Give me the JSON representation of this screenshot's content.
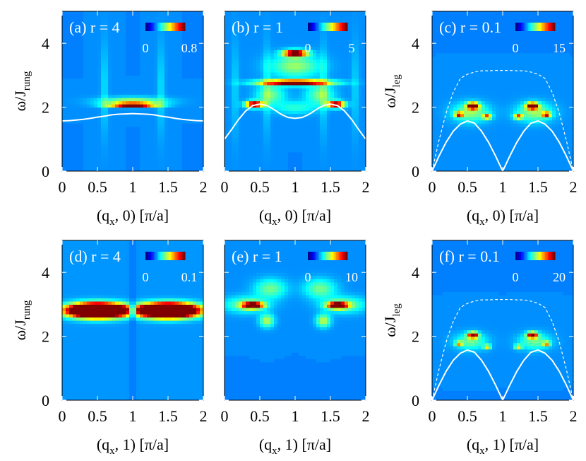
{
  "chart_data": [
    {
      "type": "heatmap",
      "panel_label": "(a) r = 4",
      "colorbar_labels": [
        "0",
        "0.8"
      ],
      "colorbar_range": [
        0,
        0.8
      ],
      "xlabel": "(q",
      "xlabel_sub": "x",
      "xlabel_rest": ", 0) [π/a]",
      "ylabel": "ω/J",
      "ylabel_sub": "rung",
      "xticks": [
        "0",
        "0.5",
        "1",
        "1.5",
        "2"
      ],
      "yticks": [
        "0",
        "2",
        "4"
      ],
      "xlim": [
        0,
        2
      ],
      "ylim": [
        0,
        5
      ],
      "colormap": "jet",
      "blobs": [
        {
          "x": 1.0,
          "y": 2.08,
          "sx": 0.32,
          "sy": 0.06,
          "a": 1.3
        },
        {
          "x": 1.0,
          "y": 2.2,
          "sx": 0.45,
          "sy": 0.12,
          "a": 0.4
        }
      ],
      "streaks": [
        {
          "x": 0.6,
          "a": 0.12
        },
        {
          "x": 1.4,
          "a": 0.12
        }
      ],
      "background": 0.02,
      "curves": [
        {
          "style": "solid",
          "points": [
            [
              0,
              1.57
            ],
            [
              0.1,
              1.58
            ],
            [
              0.2,
              1.6
            ],
            [
              0.3,
              1.62
            ],
            [
              0.4,
              1.65
            ],
            [
              0.5,
              1.69
            ],
            [
              0.6,
              1.72
            ],
            [
              0.7,
              1.76
            ],
            [
              0.8,
              1.78
            ],
            [
              0.9,
              1.79
            ],
            [
              1.0,
              1.8
            ],
            [
              1.1,
              1.79
            ],
            [
              1.2,
              1.78
            ],
            [
              1.3,
              1.76
            ],
            [
              1.4,
              1.72
            ],
            [
              1.5,
              1.69
            ],
            [
              1.6,
              1.65
            ],
            [
              1.7,
              1.62
            ],
            [
              1.8,
              1.6
            ],
            [
              1.9,
              1.58
            ],
            [
              2.0,
              1.57
            ]
          ]
        }
      ]
    },
    {
      "type": "heatmap",
      "panel_label": "(b) r = 1",
      "colorbar_labels": [
        "0",
        "5"
      ],
      "colorbar_range": [
        0,
        5
      ],
      "xlabel": "(q",
      "xlabel_sub": "x",
      "xlabel_rest": ", 0) [π/a]",
      "ylabel": "",
      "ylabel_sub": "",
      "xticks": [
        "0",
        "0.5",
        "1",
        "1.5",
        "2"
      ],
      "yticks": [],
      "xlim": [
        0,
        2
      ],
      "ylim": [
        0,
        5
      ],
      "colormap": "jet",
      "blobs": [
        {
          "x": 1.0,
          "y": 3.7,
          "sx": 0.16,
          "sy": 0.1,
          "a": 1.2
        },
        {
          "x": 1.0,
          "y": 2.78,
          "sx": 0.48,
          "sy": 0.08,
          "a": 1.2
        },
        {
          "x": 0.42,
          "y": 2.1,
          "sx": 0.12,
          "sy": 0.1,
          "a": 1.1
        },
        {
          "x": 1.58,
          "y": 2.1,
          "sx": 0.12,
          "sy": 0.1,
          "a": 1.1
        },
        {
          "x": 1.0,
          "y": 3.3,
          "sx": 0.35,
          "sy": 0.35,
          "a": 0.35
        },
        {
          "x": 0.65,
          "y": 2.4,
          "sx": 0.2,
          "sy": 0.3,
          "a": 0.3
        },
        {
          "x": 1.35,
          "y": 2.4,
          "sx": 0.2,
          "sy": 0.3,
          "a": 0.3
        },
        {
          "x": 1.0,
          "y": 2.0,
          "sx": 0.3,
          "sy": 0.2,
          "a": 0.2
        }
      ],
      "streaks": [
        {
          "x": 0.15,
          "a": 0.1
        },
        {
          "x": 0.6,
          "a": 0.12
        },
        {
          "x": 1.4,
          "a": 0.12
        },
        {
          "x": 1.85,
          "a": 0.1
        }
      ],
      "background": 0.02,
      "curves": [
        {
          "style": "solid",
          "points": [
            [
              0,
              1.0
            ],
            [
              0.1,
              1.3
            ],
            [
              0.2,
              1.62
            ],
            [
              0.3,
              1.88
            ],
            [
              0.4,
              2.05
            ],
            [
              0.5,
              2.1
            ],
            [
              0.6,
              2.05
            ],
            [
              0.7,
              1.93
            ],
            [
              0.8,
              1.78
            ],
            [
              0.9,
              1.68
            ],
            [
              1.0,
              1.65
            ],
            [
              1.1,
              1.68
            ],
            [
              1.2,
              1.78
            ],
            [
              1.3,
              1.93
            ],
            [
              1.4,
              2.05
            ],
            [
              1.5,
              2.1
            ],
            [
              1.6,
              2.05
            ],
            [
              1.7,
              1.88
            ],
            [
              1.8,
              1.62
            ],
            [
              1.9,
              1.3
            ],
            [
              2.0,
              1.0
            ]
          ]
        }
      ]
    },
    {
      "type": "heatmap",
      "panel_label": "(c) r = 0.1",
      "colorbar_labels": [
        "0",
        "15"
      ],
      "colorbar_range": [
        0,
        15
      ],
      "xlabel": "(q",
      "xlabel_sub": "x",
      "xlabel_rest": ", 0) [π/a]",
      "ylabel": "ω/J",
      "ylabel_sub": "leg",
      "xticks": [
        "0",
        "0.5",
        "1",
        "1.5",
        "2"
      ],
      "yticks": [
        "0",
        "2",
        "4"
      ],
      "xlim": [
        0,
        2
      ],
      "ylim": [
        0,
        5
      ],
      "colormap": "jet",
      "blobs": [
        {
          "x": 0.58,
          "y": 2.05,
          "sx": 0.08,
          "sy": 0.1,
          "a": 1.2
        },
        {
          "x": 1.42,
          "y": 2.05,
          "sx": 0.08,
          "sy": 0.1,
          "a": 1.2
        },
        {
          "x": 0.38,
          "y": 1.78,
          "sx": 0.06,
          "sy": 0.08,
          "a": 0.8
        },
        {
          "x": 0.78,
          "y": 1.72,
          "sx": 0.06,
          "sy": 0.08,
          "a": 0.7
        },
        {
          "x": 1.22,
          "y": 1.72,
          "sx": 0.06,
          "sy": 0.08,
          "a": 0.7
        },
        {
          "x": 1.62,
          "y": 1.78,
          "sx": 0.06,
          "sy": 0.08,
          "a": 0.8
        },
        {
          "x": 0.55,
          "y": 1.85,
          "sx": 0.25,
          "sy": 0.3,
          "a": 0.35
        },
        {
          "x": 1.45,
          "y": 1.85,
          "sx": 0.25,
          "sy": 0.3,
          "a": 0.35
        }
      ],
      "streaks": [],
      "background": 0.02,
      "curves": [
        {
          "style": "solid",
          "points": [
            [
              0,
              0
            ],
            [
              0.1,
              0.48
            ],
            [
              0.2,
              0.91
            ],
            [
              0.3,
              1.25
            ],
            [
              0.4,
              1.47
            ],
            [
              0.5,
              1.57
            ],
            [
              0.6,
              1.5
            ],
            [
              0.7,
              1.25
            ],
            [
              0.8,
              0.9
            ],
            [
              0.9,
              0.47
            ],
            [
              1.0,
              0.0
            ],
            [
              1.1,
              0.47
            ],
            [
              1.2,
              0.9
            ],
            [
              1.3,
              1.25
            ],
            [
              1.4,
              1.5
            ],
            [
              1.5,
              1.57
            ],
            [
              1.6,
              1.47
            ],
            [
              1.7,
              1.25
            ],
            [
              1.8,
              0.91
            ],
            [
              1.9,
              0.48
            ],
            [
              2.0,
              0
            ]
          ]
        },
        {
          "style": "dashed",
          "points": [
            [
              0,
              0
            ],
            [
              0.1,
              0.98
            ],
            [
              0.2,
              1.83
            ],
            [
              0.3,
              2.47
            ],
            [
              0.4,
              2.9
            ],
            [
              0.5,
              3.03
            ],
            [
              0.6,
              3.1
            ],
            [
              0.7,
              3.14
            ],
            [
              0.8,
              3.14
            ],
            [
              0.9,
              3.15
            ],
            [
              1.0,
              3.15
            ],
            [
              1.1,
              3.15
            ],
            [
              1.2,
              3.14
            ],
            [
              1.3,
              3.14
            ],
            [
              1.4,
              3.1
            ],
            [
              1.5,
              3.03
            ],
            [
              1.6,
              2.9
            ],
            [
              1.7,
              2.47
            ],
            [
              1.8,
              1.83
            ],
            [
              1.9,
              0.98
            ],
            [
              2.0,
              0
            ]
          ]
        }
      ]
    },
    {
      "type": "heatmap",
      "panel_label": "(d) r = 4",
      "colorbar_labels": [
        "0",
        "0.1"
      ],
      "colorbar_range": [
        0,
        0.1
      ],
      "xlabel": "(q",
      "xlabel_sub": "x",
      "xlabel_rest": ", 1) [π/a]",
      "ylabel": "ω/J",
      "ylabel_sub": "rung",
      "xticks": [
        "0",
        "0.5",
        "1",
        "1.5",
        "2"
      ],
      "yticks": [
        "0",
        "2",
        "4"
      ],
      "xlim": [
        0,
        2
      ],
      "ylim": [
        0,
        5
      ],
      "colormap": "jet",
      "blobs": [
        {
          "x": 0.5,
          "y": 2.82,
          "sx": 0.38,
          "sy": 0.2,
          "a": 3.0
        },
        {
          "x": 1.5,
          "y": 2.82,
          "sx": 0.38,
          "sy": 0.2,
          "a": 3.0
        }
      ],
      "streaks": [],
      "background": 0.03,
      "gap_at": 1.0,
      "curves": []
    },
    {
      "type": "heatmap",
      "panel_label": "(e) r = 1",
      "colorbar_labels": [
        "0",
        "10"
      ],
      "colorbar_range": [
        0,
        10
      ],
      "xlabel": "(q",
      "xlabel_sub": "x",
      "xlabel_rest": ", 1) [π/a]",
      "ylabel": "",
      "ylabel_sub": "",
      "xticks": [
        "0",
        "0.5",
        "1",
        "1.5",
        "2"
      ],
      "yticks": [],
      "xlim": [
        0,
        2
      ],
      "ylim": [
        0,
        5
      ],
      "colormap": "jet",
      "blobs": [
        {
          "x": 0.4,
          "y": 2.98,
          "sx": 0.14,
          "sy": 0.1,
          "a": 1.2
        },
        {
          "x": 1.6,
          "y": 2.98,
          "sx": 0.14,
          "sy": 0.1,
          "a": 1.2
        },
        {
          "x": 0.6,
          "y": 2.5,
          "sx": 0.1,
          "sy": 0.2,
          "a": 0.4
        },
        {
          "x": 1.4,
          "y": 2.5,
          "sx": 0.1,
          "sy": 0.2,
          "a": 0.4
        },
        {
          "x": 0.65,
          "y": 3.5,
          "sx": 0.22,
          "sy": 0.3,
          "a": 0.3
        },
        {
          "x": 1.35,
          "y": 3.5,
          "sx": 0.22,
          "sy": 0.3,
          "a": 0.3
        },
        {
          "x": 0.3,
          "y": 3.0,
          "sx": 0.3,
          "sy": 0.25,
          "a": 0.3
        },
        {
          "x": 1.7,
          "y": 3.0,
          "sx": 0.3,
          "sy": 0.25,
          "a": 0.3
        }
      ],
      "streaks": [],
      "background": 0.02,
      "curves": []
    },
    {
      "type": "heatmap",
      "panel_label": "(f) r = 0.1",
      "colorbar_labels": [
        "0",
        "20"
      ],
      "colorbar_range": [
        0,
        20
      ],
      "xlabel": "(q",
      "xlabel_sub": "x",
      "xlabel_rest": ", 1) [π/a]",
      "ylabel": "ω/J",
      "ylabel_sub": "leg",
      "xticks": [
        "0",
        "0.5",
        "1",
        "1.5",
        "2"
      ],
      "yticks": [
        "0",
        "2",
        "4"
      ],
      "xlim": [
        0,
        2
      ],
      "ylim": [
        0,
        5
      ],
      "colormap": "jet",
      "blobs": [
        {
          "x": 0.58,
          "y": 2.05,
          "sx": 0.07,
          "sy": 0.09,
          "a": 1.1
        },
        {
          "x": 1.42,
          "y": 2.05,
          "sx": 0.07,
          "sy": 0.09,
          "a": 1.1
        },
        {
          "x": 0.38,
          "y": 1.78,
          "sx": 0.05,
          "sy": 0.07,
          "a": 0.6
        },
        {
          "x": 0.78,
          "y": 1.68,
          "sx": 0.05,
          "sy": 0.07,
          "a": 0.55
        },
        {
          "x": 1.22,
          "y": 1.68,
          "sx": 0.05,
          "sy": 0.07,
          "a": 0.55
        },
        {
          "x": 1.62,
          "y": 1.78,
          "sx": 0.05,
          "sy": 0.07,
          "a": 0.6
        },
        {
          "x": 0.55,
          "y": 1.85,
          "sx": 0.22,
          "sy": 0.25,
          "a": 0.3
        },
        {
          "x": 1.45,
          "y": 1.85,
          "sx": 0.22,
          "sy": 0.25,
          "a": 0.3
        }
      ],
      "streaks": [],
      "background": 0.02,
      "curves": [
        {
          "style": "solid",
          "points": [
            [
              0,
              0
            ],
            [
              0.1,
              0.48
            ],
            [
              0.2,
              0.91
            ],
            [
              0.3,
              1.25
            ],
            [
              0.4,
              1.47
            ],
            [
              0.5,
              1.57
            ],
            [
              0.6,
              1.5
            ],
            [
              0.7,
              1.25
            ],
            [
              0.8,
              0.9
            ],
            [
              0.9,
              0.47
            ],
            [
              1.0,
              0.0
            ],
            [
              1.1,
              0.47
            ],
            [
              1.2,
              0.9
            ],
            [
              1.3,
              1.25
            ],
            [
              1.4,
              1.5
            ],
            [
              1.5,
              1.57
            ],
            [
              1.6,
              1.47
            ],
            [
              1.7,
              1.25
            ],
            [
              1.8,
              0.91
            ],
            [
              1.9,
              0.48
            ],
            [
              2.0,
              0
            ]
          ]
        },
        {
          "style": "dashed",
          "points": [
            [
              0,
              0
            ],
            [
              0.1,
              0.98
            ],
            [
              0.2,
              1.83
            ],
            [
              0.3,
              2.47
            ],
            [
              0.4,
              2.9
            ],
            [
              0.5,
              3.03
            ],
            [
              0.6,
              3.1
            ],
            [
              0.7,
              3.14
            ],
            [
              0.8,
              3.14
            ],
            [
              0.9,
              3.15
            ],
            [
              1.0,
              3.15
            ],
            [
              1.1,
              3.15
            ],
            [
              1.2,
              3.14
            ],
            [
              1.3,
              3.14
            ],
            [
              1.4,
              3.1
            ],
            [
              1.5,
              3.03
            ],
            [
              1.6,
              2.9
            ],
            [
              1.7,
              2.47
            ],
            [
              1.8,
              1.83
            ],
            [
              1.9,
              0.98
            ],
            [
              2.0,
              0
            ]
          ]
        }
      ]
    }
  ]
}
